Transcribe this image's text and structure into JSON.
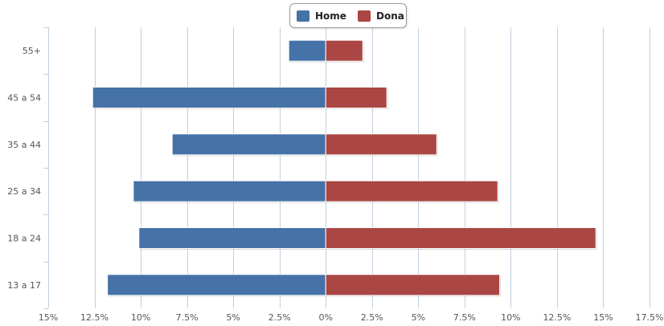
{
  "chart_data": {
    "type": "bar",
    "orientation": "horizontal",
    "categories": [
      "55+",
      "45 a 54",
      "35 a 44",
      "25 a 34",
      "18 a 24",
      "13 a 17"
    ],
    "series": [
      {
        "name": "Home",
        "color": "#4572a7",
        "values": [
          -2.0,
          -12.6,
          -8.3,
          -10.4,
          -10.1,
          -11.8
        ]
      },
      {
        "name": "Dona",
        "color": "#aa4643",
        "values": [
          2.0,
          3.3,
          6.0,
          9.3,
          14.6,
          9.4
        ]
      }
    ],
    "xlim": [
      -15,
      17.5
    ],
    "x_ticks": [
      -15,
      -12.5,
      -10,
      -7.5,
      -5,
      -2.5,
      0,
      2.5,
      5,
      7.5,
      10,
      12.5,
      15,
      17.5
    ],
    "x_tick_labels": [
      "15%",
      "12.5%",
      "10%",
      "7.5%",
      "5%",
      "2.5%",
      "0%",
      "2.5%",
      "5%",
      "7.5%",
      "10%",
      "12.5%",
      "15%",
      "17.5%"
    ],
    "grid": true,
    "legend_position": "top-center",
    "title": "",
    "xlabel": "",
    "ylabel": ""
  }
}
